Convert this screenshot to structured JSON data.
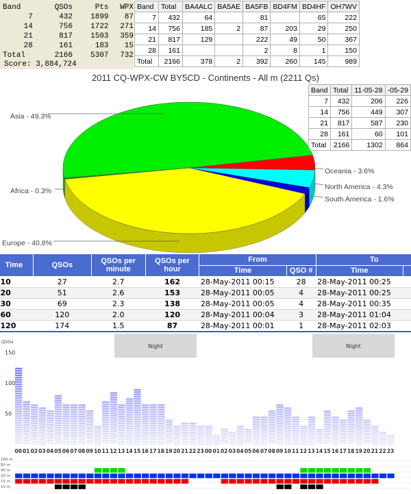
{
  "score_panel": {
    "headers": [
      "Band",
      "QSOs",
      "Pts",
      "WPX"
    ],
    "rows": [
      [
        "7",
        "432",
        "1899",
        "87"
      ],
      [
        "14",
        "756",
        "1722",
        "271"
      ],
      [
        "21",
        "817",
        "1503",
        "359"
      ],
      [
        "28",
        "161",
        "183",
        "15"
      ],
      [
        "Total",
        "2166",
        "5307",
        "732"
      ]
    ],
    "score": "Score: 3,884,724"
  },
  "ops_table": {
    "headers": [
      "Band",
      "Total",
      "BA4ALC",
      "BA5AE",
      "BA5FB",
      "BD4FM",
      "BD4HF",
      "OH7WV"
    ],
    "rows": [
      [
        "7",
        "432",
        "64",
        "",
        "81",
        "",
        "65",
        "222"
      ],
      [
        "14",
        "756",
        "185",
        "2",
        "87",
        "203",
        "29",
        "250"
      ],
      [
        "21",
        "817",
        "129",
        "",
        "222",
        "49",
        "50",
        "367"
      ],
      [
        "28",
        "161",
        "",
        "",
        "2",
        "8",
        "1",
        "150"
      ],
      [
        "Total",
        "2166",
        "378",
        "2",
        "392",
        "260",
        "145",
        "989"
      ]
    ]
  },
  "pie": {
    "title": "2011 CQ-WPX-CW BY5CD - Continents - All m (2211 Qs)",
    "colors": {
      "Asia": "#00ee00",
      "Oceania": "#ff0000",
      "North America": "#00ffff",
      "South America": "#0000dd",
      "Europe": "#ffff00",
      "Africa": "#009900"
    },
    "labels": {
      "asia": "Asia - 49.3%",
      "oceania": "Oceania - 3.6%",
      "north_america": "North America - 4.3%",
      "south_america": "South America - 1.6%",
      "europe": "Europe - 40.8%",
      "africa": "Africa - 0.3%"
    }
  },
  "chart_data": {
    "type": "pie",
    "title": "2011 CQ-WPX-CW BY5CD - Continents - All m (2211 Qs)",
    "categories": [
      "Asia",
      "Oceania",
      "North America",
      "South America",
      "Europe",
      "Africa"
    ],
    "values": [
      49.3,
      3.6,
      4.3,
      1.6,
      40.8,
      0.3
    ]
  },
  "date_table": {
    "headers": [
      "Band",
      "Total",
      "11-05-28",
      "-05-29"
    ],
    "rows": [
      [
        "7",
        "432",
        "206",
        "226"
      ],
      [
        "14",
        "756",
        "449",
        "307"
      ],
      [
        "21",
        "817",
        "587",
        "230"
      ],
      [
        "28",
        "161",
        "60",
        "101"
      ],
      [
        "Total",
        "2166",
        "1302",
        "864"
      ]
    ]
  },
  "rate_table": {
    "headers": {
      "time": "Time",
      "qsos": "QSOs",
      "per_min": "QSOs per minute",
      "per_hour": "QSOs per hour",
      "from": "From",
      "to": "To",
      "f_time": "Time",
      "f_qso": "QSO #",
      "t_time": "Time",
      "t_q": "Q"
    },
    "rows": [
      [
        "10",
        "27",
        "2.7",
        "162",
        "28-May-2011 00:15",
        "28",
        "28-May-2011 00:25"
      ],
      [
        "20",
        "51",
        "2.6",
        "153",
        "28-May-2011 00:05",
        "4",
        "28-May-2011 00:25"
      ],
      [
        "30",
        "69",
        "2.3",
        "138",
        "28-May-2011 00:05",
        "4",
        "28-May-2011 00:35"
      ],
      [
        "60",
        "120",
        "2.0",
        "120",
        "28-May-2011 00:04",
        "3",
        "28-May-2011 01:04"
      ],
      [
        "120",
        "174",
        "1.5",
        "87",
        "28-May-2011 00:01",
        "1",
        "28-May-2011 02:03"
      ]
    ]
  },
  "activity": {
    "ylabel": "QSOs",
    "yticks": [
      "150",
      "100",
      "50"
    ],
    "night_label": "Night",
    "hours": [
      "00",
      "01",
      "02",
      "03",
      "04",
      "05",
      "06",
      "07",
      "08",
      "09",
      "10",
      "11",
      "12",
      "13",
      "14",
      "15",
      "16",
      "17",
      "18",
      "19",
      "20",
      "21",
      "22",
      "23",
      "00",
      "01",
      "02",
      "03",
      "04",
      "05",
      "06",
      "07",
      "08",
      "09",
      "10",
      "11",
      "12",
      "13",
      "14",
      "15",
      "16",
      "17",
      "18",
      "19",
      "20",
      "21",
      "22",
      "23"
    ],
    "counts": [
      125,
      70,
      65,
      60,
      55,
      80,
      65,
      65,
      65,
      55,
      30,
      70,
      85,
      65,
      75,
      90,
      65,
      65,
      65,
      40,
      30,
      35,
      35,
      30,
      30,
      15,
      25,
      20,
      30,
      25,
      45,
      45,
      55,
      65,
      60,
      45,
      30,
      45,
      25,
      55,
      45,
      40,
      55,
      60,
      40,
      30,
      20,
      15
    ],
    "band_labels": [
      "160 m",
      "80 m",
      "40 m",
      "20 m",
      "15 m",
      "10 m"
    ],
    "band_colors": {
      "40 m": "#00dd00",
      "20 m": "#0033ee",
      "15 m": "#ee0000",
      "10 m": "#000000"
    },
    "band_activity": {
      "40 m": [
        0,
        0,
        0,
        0,
        0,
        0,
        0,
        0,
        0,
        0,
        1,
        1,
        1,
        1,
        0,
        0,
        0,
        0,
        0,
        0,
        0,
        0,
        0,
        0,
        0,
        0,
        0,
        0,
        0,
        0,
        0,
        0,
        0,
        0,
        0,
        0,
        1,
        1,
        1,
        1,
        1,
        1,
        1,
        1,
        1,
        0,
        0,
        0
      ],
      "20 m": [
        1,
        1,
        1,
        1,
        1,
        1,
        1,
        1,
        1,
        1,
        1,
        1,
        1,
        1,
        1,
        1,
        1,
        1,
        1,
        1,
        1,
        1,
        1,
        1,
        1,
        1,
        1,
        1,
        1,
        1,
        1,
        1,
        1,
        1,
        1,
        1,
        1,
        1,
        1,
        1,
        1,
        1,
        1,
        1,
        1,
        1,
        1,
        1
      ],
      "15 m": [
        1,
        1,
        1,
        1,
        1,
        1,
        1,
        1,
        1,
        1,
        1,
        1,
        1,
        1,
        1,
        1,
        1,
        1,
        1,
        1,
        1,
        1,
        0,
        0,
        0,
        0,
        1,
        1,
        1,
        1,
        1,
        1,
        1,
        1,
        1,
        1,
        1,
        1,
        1,
        1,
        1,
        1,
        1,
        1,
        1,
        1,
        0,
        0
      ],
      "10 m": [
        0,
        0,
        0,
        0,
        0,
        1,
        1,
        1,
        1,
        0,
        0,
        0,
        0,
        0,
        0,
        0,
        0,
        0,
        0,
        0,
        0,
        0,
        0,
        0,
        0,
        0,
        0,
        0,
        0,
        0,
        0,
        0,
        0,
        1,
        1,
        0,
        1,
        1,
        1,
        0,
        0,
        0,
        0,
        0,
        0,
        0,
        0,
        0
      ]
    }
  }
}
